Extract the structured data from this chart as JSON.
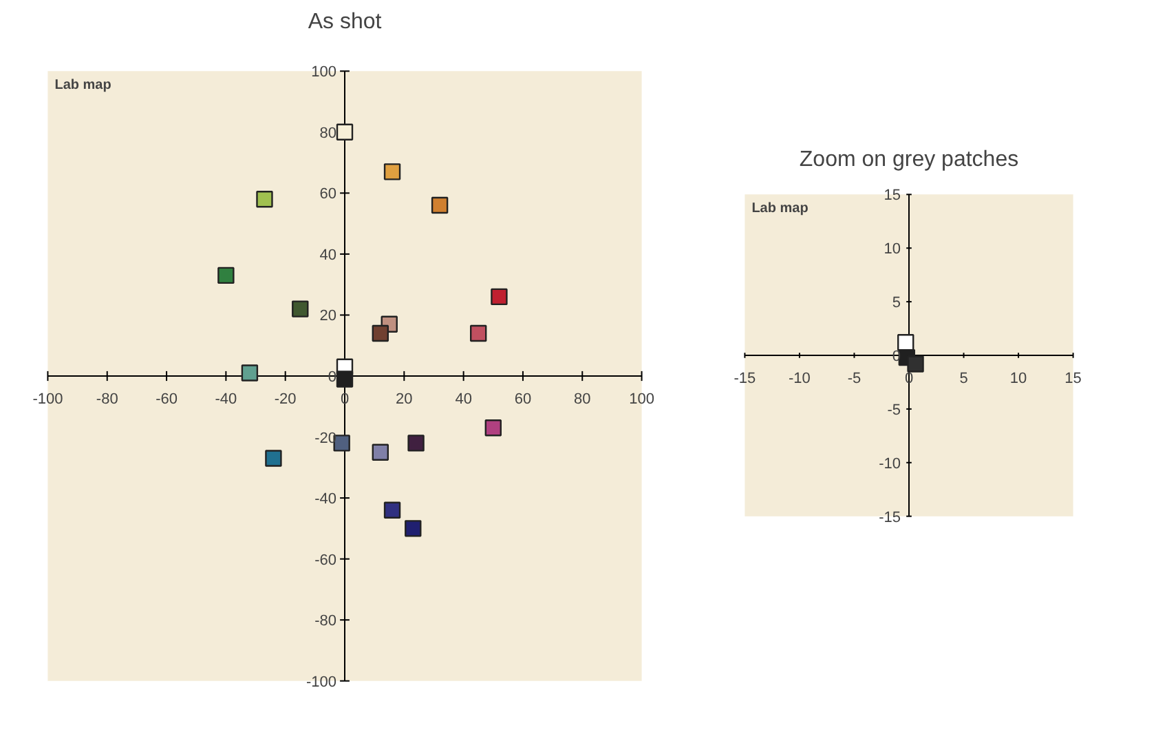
{
  "chart_data": [
    {
      "type": "scatter",
      "title": "As shot",
      "marker": "square",
      "grid": false,
      "annotations": [
        "Lab map"
      ],
      "x": [
        0,
        16,
        32,
        -27,
        -40,
        -15,
        15,
        12,
        45,
        52,
        -32,
        0,
        0,
        50,
        -1,
        12,
        24,
        -24,
        16,
        23
      ],
      "values": [
        80,
        67,
        56,
        58,
        33,
        22,
        17,
        14,
        14,
        26,
        1,
        3,
        -1,
        -17,
        -22,
        -25,
        -22,
        -27,
        -44,
        -50
      ],
      "colors": [
        "#f8f0d8",
        "#e0a040",
        "#d08030",
        "#a0c050",
        "#308040",
        "#405830",
        "#c09080",
        "#704030",
        "#c05060",
        "#c02030",
        "#60a090",
        "#ffffff",
        "#202020",
        "#b04080",
        "#506080",
        "#8080a8",
        "#402040",
        "#207090",
        "#303080",
        "#202070"
      ],
      "xlim": [
        -100,
        100
      ],
      "ylim": [
        -100,
        100
      ],
      "xticks": [
        -100,
        -80,
        -60,
        -40,
        -20,
        0,
        20,
        40,
        60,
        80,
        100
      ],
      "yticks": [
        -100,
        -80,
        -60,
        -40,
        -20,
        0,
        20,
        40,
        60,
        80,
        100
      ]
    },
    {
      "type": "scatter",
      "title": "Zoom on grey patches",
      "marker": "square",
      "grid": false,
      "annotations": [
        "Lab map"
      ],
      "x": [
        -0.3,
        -0.2,
        0.6
      ],
      "values": [
        1.2,
        -0.2,
        -0.8
      ],
      "colors": [
        "#ffffff",
        "#202020",
        "#303030"
      ],
      "xlim": [
        -15,
        15
      ],
      "ylim": [
        -15,
        15
      ],
      "xticks": [
        -15,
        -10,
        -5,
        0,
        5,
        10,
        15
      ],
      "yticks": [
        -15,
        -10,
        -5,
        0,
        5,
        10,
        15
      ]
    }
  ]
}
